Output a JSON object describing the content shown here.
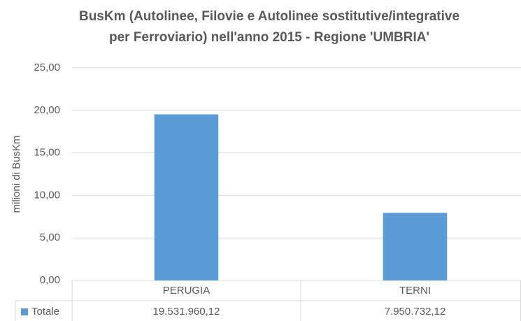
{
  "chart_data": {
    "type": "bar",
    "title": [
      "BusKm (Autolinee, Filovie e Autolinee sostitutive/integrative",
      "per Ferroviario) nell'anno 2015 - Regione 'UMBRIA'"
    ],
    "y_label": "milioni di BusKm",
    "categories": [
      "PERUGIA",
      "TERNI"
    ],
    "series": [
      {
        "name": "Totale",
        "color": "#5b9bd5",
        "values": [
          19.53196012,
          7.95073212
        ],
        "value_labels": [
          "19.531.960,12",
          "7.950.732,12"
        ]
      }
    ],
    "ylim": [
      0,
      25
    ],
    "yticks": [
      {
        "value": 0,
        "label": "0,00"
      },
      {
        "value": 5,
        "label": "5,00"
      },
      {
        "value": 10,
        "label": "10,00"
      },
      {
        "value": 15,
        "label": "15,00"
      },
      {
        "value": 20,
        "label": "20,00"
      },
      {
        "value": 25,
        "label": "25,00"
      }
    ],
    "grid": true
  }
}
